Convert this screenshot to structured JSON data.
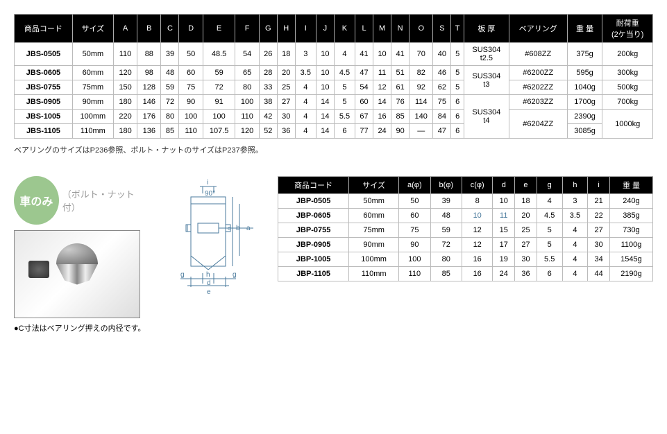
{
  "table1": {
    "headers": [
      "商品コード",
      "サイズ",
      "A",
      "B",
      "C",
      "D",
      "E",
      "F",
      "G",
      "H",
      "I",
      "J",
      "K",
      "L",
      "M",
      "N",
      "O",
      "S",
      "T",
      "板 厚",
      "ベアリング",
      "重 量",
      "耐荷重\n(2ケ当り)"
    ],
    "rows": [
      {
        "code": "JBS-0505",
        "size": "50mm",
        "A": "110",
        "B": "88",
        "C": "39",
        "D": "50",
        "E": "48.5",
        "F": "54",
        "G": "26",
        "H": "18",
        "I": "3",
        "J": "10",
        "K": "4",
        "L": "41",
        "M": "10",
        "N": "41",
        "O": "70",
        "S": "40",
        "T": "5",
        "thick": "SUS304\nt2.5",
        "bearing": "#608ZZ",
        "weight": "375g",
        "load": "200kg"
      },
      {
        "code": "JBS-0605",
        "size": "60mm",
        "A": "120",
        "B": "98",
        "C": "48",
        "D": "60",
        "E": "59",
        "F": "65",
        "G": "28",
        "H": "20",
        "I": "3.5",
        "J": "10",
        "K": "4.5",
        "L": "47",
        "M": "11",
        "N": "51",
        "O": "82",
        "S": "46",
        "T": "5",
        "thick": "",
        "bearing": "#6200ZZ",
        "weight": "595g",
        "load": "300kg"
      },
      {
        "code": "JBS-0755",
        "size": "75mm",
        "A": "150",
        "B": "128",
        "C": "59",
        "D": "75",
        "E": "72",
        "F": "80",
        "G": "33",
        "H": "25",
        "I": "4",
        "J": "10",
        "K": "5",
        "L": "54",
        "M": "12",
        "N": "61",
        "O": "92",
        "S": "62",
        "T": "5",
        "thick": "",
        "bearing": "#6202ZZ",
        "weight": "1040g",
        "load": "500kg"
      },
      {
        "code": "JBS-0905",
        "size": "90mm",
        "A": "180",
        "B": "146",
        "C": "72",
        "D": "90",
        "E": "91",
        "F": "100",
        "G": "38",
        "H": "27",
        "I": "4",
        "J": "14",
        "K": "5",
        "L": "60",
        "M": "14",
        "N": "76",
        "O": "114",
        "S": "75",
        "T": "6",
        "thick": "",
        "bearing": "#6203ZZ",
        "weight": "1700g",
        "load": "700kg"
      },
      {
        "code": "JBS-1005",
        "size": "100mm",
        "A": "220",
        "B": "176",
        "C": "80",
        "D": "100",
        "E": "100",
        "F": "110",
        "G": "42",
        "H": "30",
        "I": "4",
        "J": "14",
        "K": "5.5",
        "L": "67",
        "M": "16",
        "N": "85",
        "O": "140",
        "S": "84",
        "T": "6",
        "thick": "",
        "bearing": "#6204ZZ",
        "weight": "2390g",
        "load": "1000kg"
      },
      {
        "code": "JBS-1105",
        "size": "110mm",
        "A": "180",
        "B": "136",
        "C": "85",
        "D": "110",
        "E": "107.5",
        "F": "120",
        "G": "52",
        "H": "36",
        "I": "4",
        "J": "14",
        "K": "6",
        "L": "77",
        "M": "24",
        "N": "90",
        "O": "—",
        "S": "47",
        "T": "6",
        "thick": "",
        "bearing": "",
        "weight": "3085g",
        "load": ""
      }
    ],
    "thick_span2": "SUS304\nt3",
    "thick_span3": "SUS304\nt4",
    "bearing_span": "#6204ZZ",
    "load_span": "1000kg"
  },
  "footnote1": "ベアリングのサイズはP236参照、ボルト・ナットのサイズはP237参照。",
  "badge": {
    "main": "車のみ",
    "sub": "（ボルト・ナット付）"
  },
  "caption2": "●C寸法はベアリング押えの内径です。",
  "table2": {
    "headers": [
      "商品コード",
      "サイズ",
      "a(φ)",
      "b(φ)",
      "c(φ)",
      "d",
      "e",
      "g",
      "h",
      "i",
      "重 量"
    ],
    "rows": [
      {
        "code": "JBP-0505",
        "size": "50mm",
        "a": "50",
        "b": "39",
        "c": "8",
        "d": "10",
        "e": "18",
        "g": "4",
        "h": "3",
        "i": "21",
        "w": "240g"
      },
      {
        "code": "JBP-0605",
        "size": "60mm",
        "a": "60",
        "b": "48",
        "c": "10",
        "d": "11",
        "e": "20",
        "g": "4.5",
        "h": "3.5",
        "i": "22",
        "w": "385g"
      },
      {
        "code": "JBP-0755",
        "size": "75mm",
        "a": "75",
        "b": "59",
        "c": "12",
        "d": "15",
        "e": "25",
        "g": "5",
        "h": "4",
        "i": "27",
        "w": "730g"
      },
      {
        "code": "JBP-0905",
        "size": "90mm",
        "a": "90",
        "b": "72",
        "c": "12",
        "d": "17",
        "e": "27",
        "g": "5",
        "h": "4",
        "i": "30",
        "w": "1100g"
      },
      {
        "code": "JBP-1005",
        "size": "100mm",
        "a": "100",
        "b": "80",
        "c": "16",
        "d": "19",
        "e": "30",
        "g": "5.5",
        "h": "4",
        "i": "34",
        "w": "1545g"
      },
      {
        "code": "JBP-1105",
        "size": "110mm",
        "a": "110",
        "b": "85",
        "c": "16",
        "d": "24",
        "e": "36",
        "g": "6",
        "h": "4",
        "i": "44",
        "w": "2190g"
      }
    ]
  },
  "diagram": {
    "labels": {
      "i": "i",
      "angle": "90°",
      "a": "a",
      "b": "b",
      "c": "c",
      "d": "d",
      "e": "e",
      "g": "g",
      "h": "h"
    }
  }
}
